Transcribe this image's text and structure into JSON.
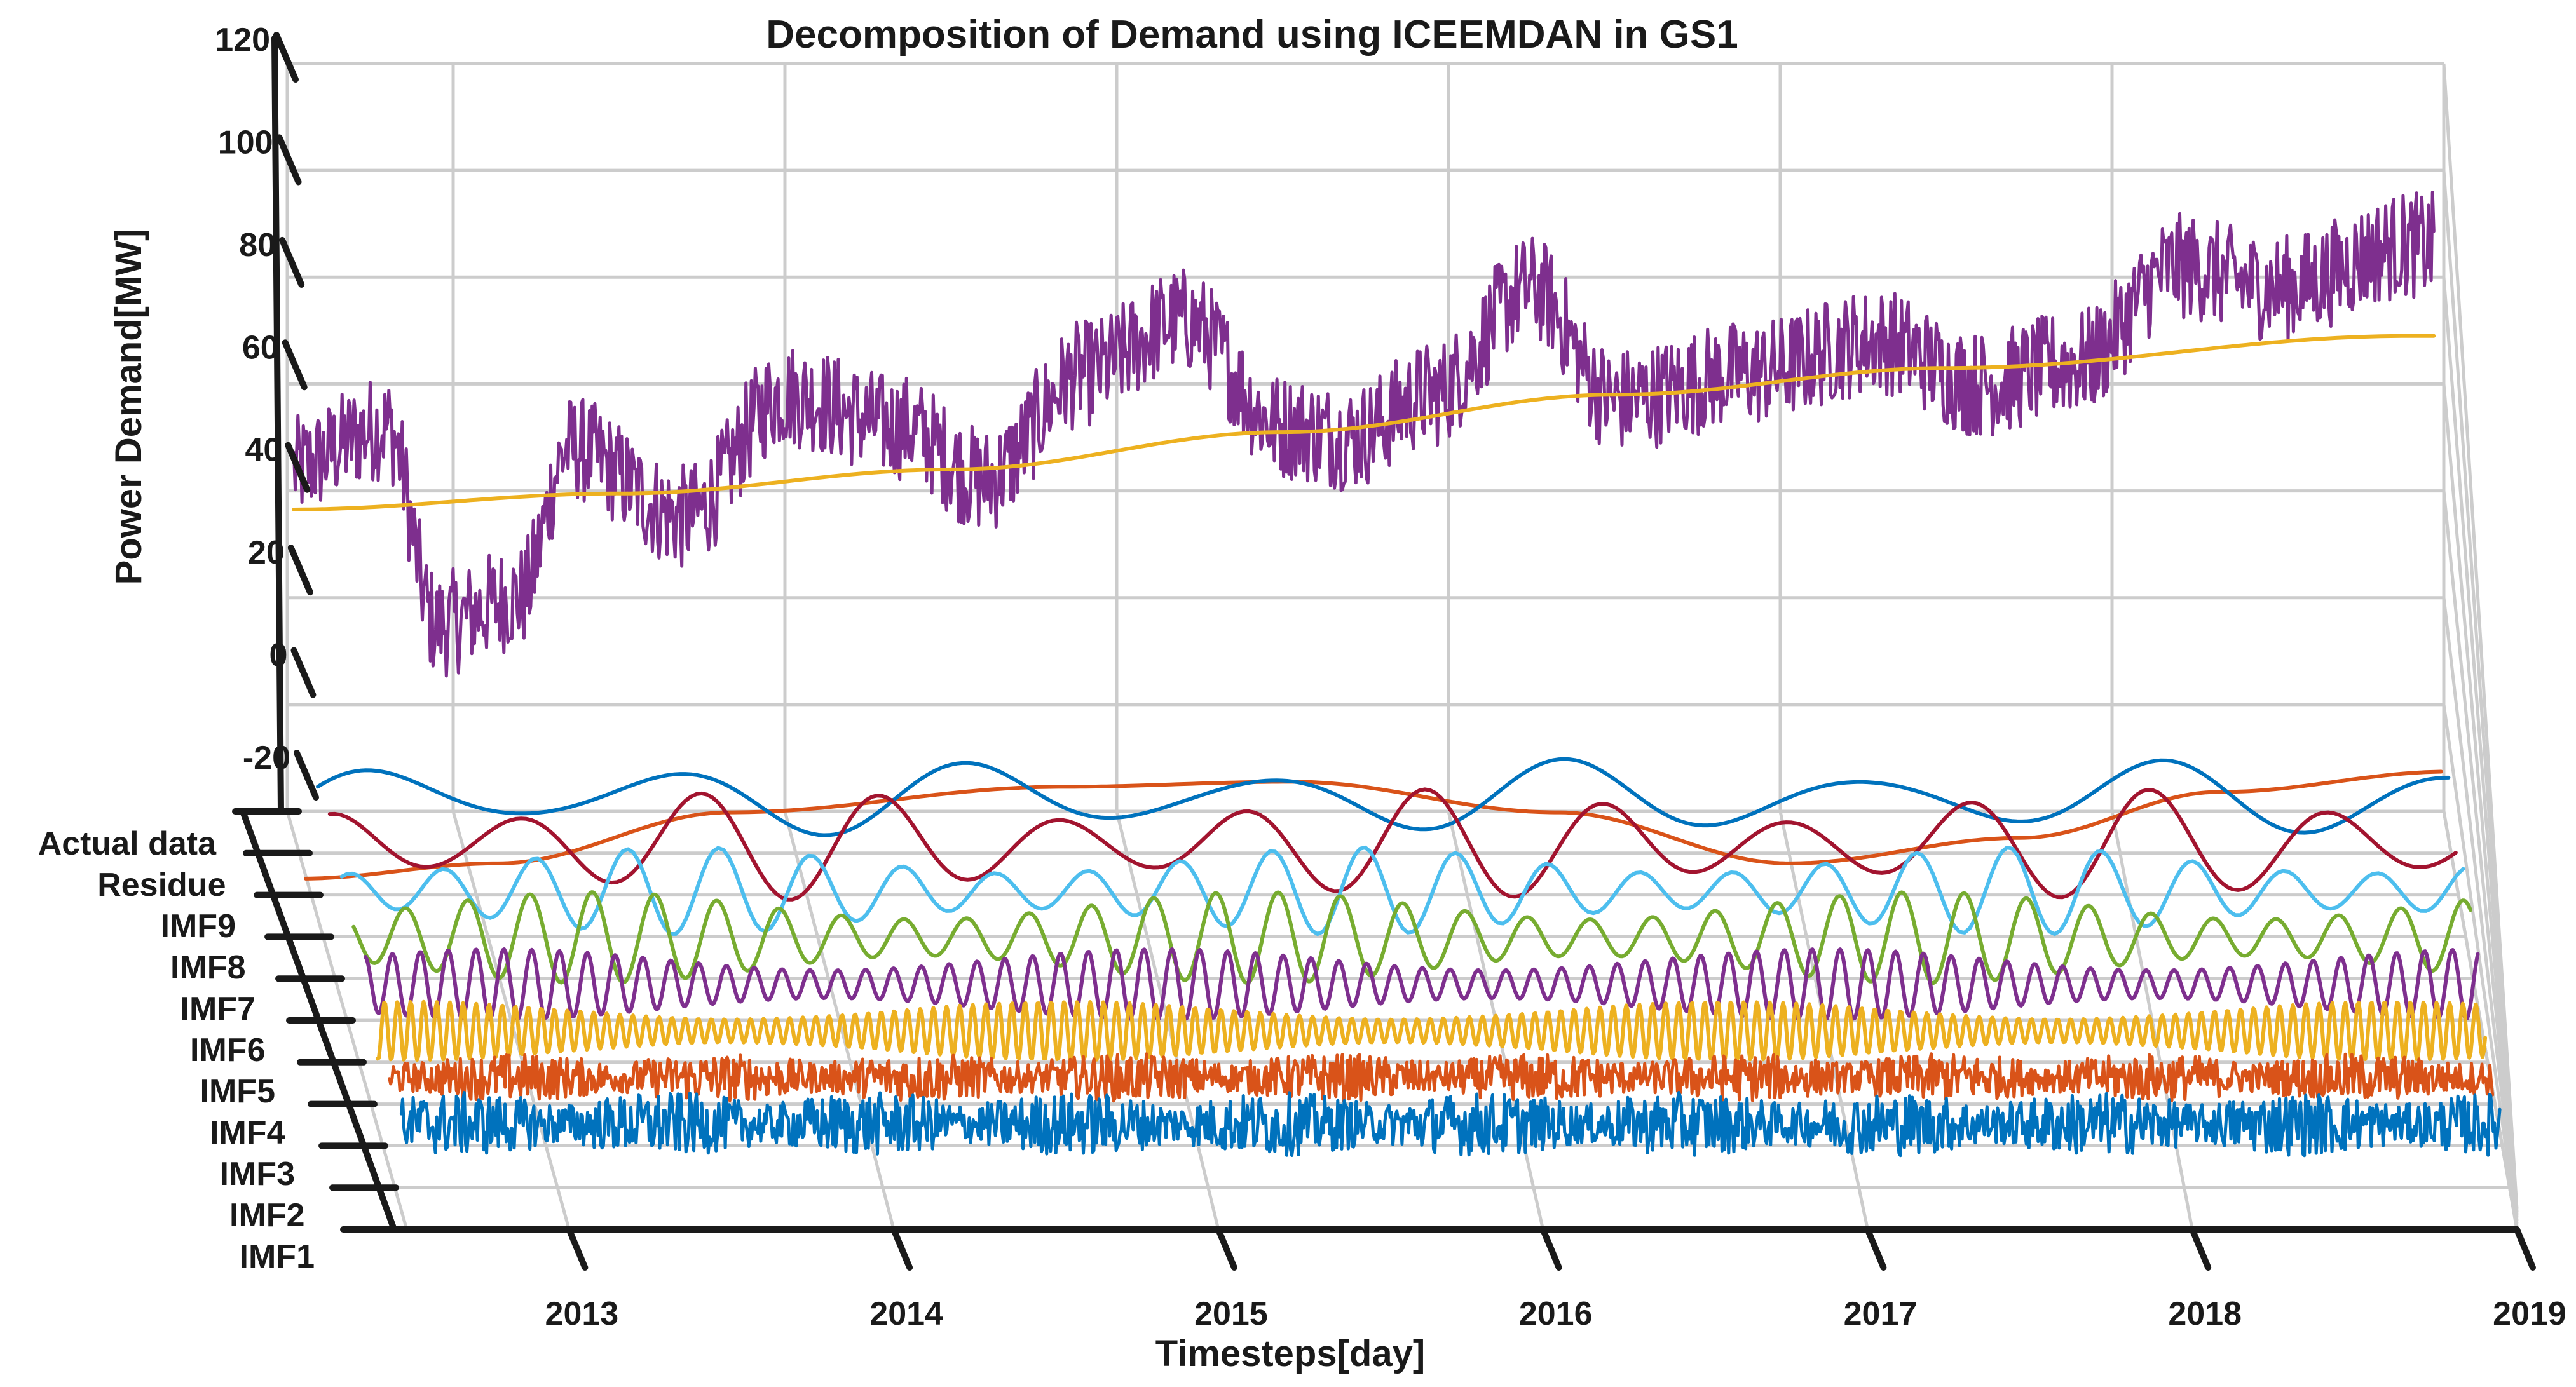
{
  "chart_data": {
    "type": "line",
    "view": "3d-waterfall",
    "title": "Decomposition of Demand using ICEEMDAN in GS1",
    "xlabel": "Timesteps[day]",
    "ylabel": "",
    "zlabel": "Power Demand[MW]",
    "x_range": [
      "2012-07-01",
      "2019-01-01"
    ],
    "x_ticks": [
      "2013",
      "2014",
      "2015",
      "2016",
      "2017",
      "2018",
      "2019"
    ],
    "z_range": [
      -20,
      120
    ],
    "z_ticks": [
      "120",
      "100",
      "80",
      "60",
      "40",
      "20",
      "0",
      "-20"
    ],
    "y_ticks": [
      "Actual data",
      "Residue",
      "IMF9",
      "IMF8",
      "IMF7",
      "IMF6",
      "IMF5",
      "IMF4",
      "IMF3",
      "IMF2",
      "IMF1"
    ],
    "grid": true,
    "series": [
      {
        "name": "Actual data",
        "color": "#7E2F8E",
        "kind": "noisy",
        "trend": [
          [
            2012.5,
            44
          ],
          [
            2012.8,
            52
          ],
          [
            2012.95,
            15
          ],
          [
            2013.2,
            20
          ],
          [
            2013.35,
            48
          ],
          [
            2013.7,
            35
          ],
          [
            2014.0,
            58
          ],
          [
            2014.35,
            52
          ],
          [
            2014.6,
            42
          ],
          [
            2014.9,
            62
          ],
          [
            2015.2,
            72
          ],
          [
            2015.5,
            52
          ],
          [
            2015.7,
            50
          ],
          [
            2015.95,
            58
          ],
          [
            2016.25,
            78
          ],
          [
            2016.5,
            57
          ],
          [
            2016.9,
            62
          ],
          [
            2017.3,
            68
          ],
          [
            2017.6,
            60
          ],
          [
            2017.9,
            64
          ],
          [
            2018.2,
            82
          ],
          [
            2018.5,
            78
          ],
          [
            2018.9,
            86
          ]
        ],
        "noise_amplitude": 10
      },
      {
        "name": "Residue",
        "color": "#EDB120",
        "kind": "smooth",
        "points": [
          [
            2012.5,
            36.5
          ],
          [
            2013.5,
            39.5
          ],
          [
            2014.5,
            44
          ],
          [
            2015.5,
            51
          ],
          [
            2016.5,
            58
          ],
          [
            2017.5,
            63
          ],
          [
            2018.9,
            69
          ]
        ]
      },
      {
        "name": "IMF9",
        "color": "#D95319",
        "kind": "smooth",
        "points": [
          [
            2012.5,
            -25
          ],
          [
            2013.1,
            -22
          ],
          [
            2013.8,
            -12
          ],
          [
            2014.8,
            -7
          ],
          [
            2015.5,
            -6
          ],
          [
            2016.3,
            -12
          ],
          [
            2017.0,
            -22
          ],
          [
            2017.7,
            -17
          ],
          [
            2018.3,
            -8
          ],
          [
            2019.0,
            -4
          ]
        ]
      },
      {
        "name": "IMF8",
        "color": "#0072BD",
        "kind": "wave",
        "period": 0.9,
        "amplitude": 8,
        "phase": 0.2
      },
      {
        "name": "IMF7",
        "color": "#A2142F",
        "kind": "wave",
        "period": 0.55,
        "amplitude": 12,
        "phase": 1.1
      },
      {
        "name": "IMF6",
        "color": "#4DBEEE",
        "kind": "wave",
        "period": 0.28,
        "amplitude": 10,
        "phase": 0.5
      },
      {
        "name": "IMF5",
        "color": "#77AC30",
        "kind": "wave",
        "period": 0.19,
        "amplitude": 11,
        "phase": 2.0
      },
      {
        "name": "IMF4",
        "color": "#7E2F8E",
        "kind": "wave",
        "period": 0.085,
        "amplitude": 9,
        "phase": 0.3
      },
      {
        "name": "IMF3",
        "color": "#EDB120",
        "kind": "wave",
        "period": 0.04,
        "amplitude": 8,
        "phase": 1.3
      },
      {
        "name": "IMF2",
        "color": "#D95319",
        "kind": "noisy-band",
        "amplitude": 7
      },
      {
        "name": "IMF1",
        "color": "#0072BD",
        "kind": "noisy-band",
        "amplitude": 10
      }
    ]
  }
}
